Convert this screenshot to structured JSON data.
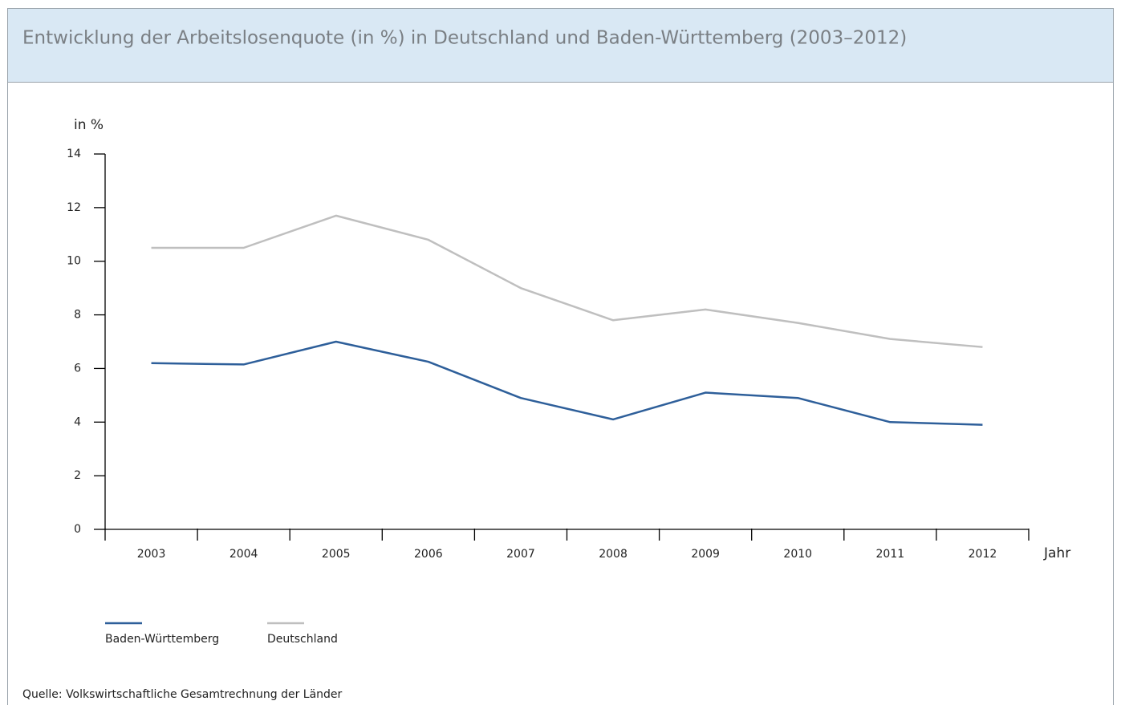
{
  "chart_data": {
    "type": "line",
    "title": "Entwicklung der Arbeitslosenquote (in %) in Deutschland und Baden-Württemberg (2003–2012)",
    "y_label": "in %",
    "x_label": "Jahr",
    "source": "Quelle: Volkswirtschaftliche Gesamtrechnung der Länder",
    "categories": [
      "2003",
      "2004",
      "2005",
      "2006",
      "2007",
      "2008",
      "2009",
      "2010",
      "2011",
      "2012"
    ],
    "series": [
      {
        "name": "Baden-Württemberg",
        "color": "#2e5f9a",
        "values": [
          6.2,
          6.15,
          7.0,
          6.25,
          4.9,
          4.1,
          5.1,
          4.9,
          4.0,
          3.9
        ]
      },
      {
        "name": "Deutschland",
        "color": "#bfbfbf",
        "values": [
          10.5,
          10.5,
          11.7,
          10.8,
          9.0,
          7.8,
          8.2,
          7.7,
          7.1,
          6.8
        ]
      }
    ],
    "ylim": [
      0,
      14
    ],
    "yticks": [
      0,
      2,
      4,
      6,
      8,
      10,
      12,
      14
    ],
    "grid": false,
    "legend": "bottom-left"
  }
}
